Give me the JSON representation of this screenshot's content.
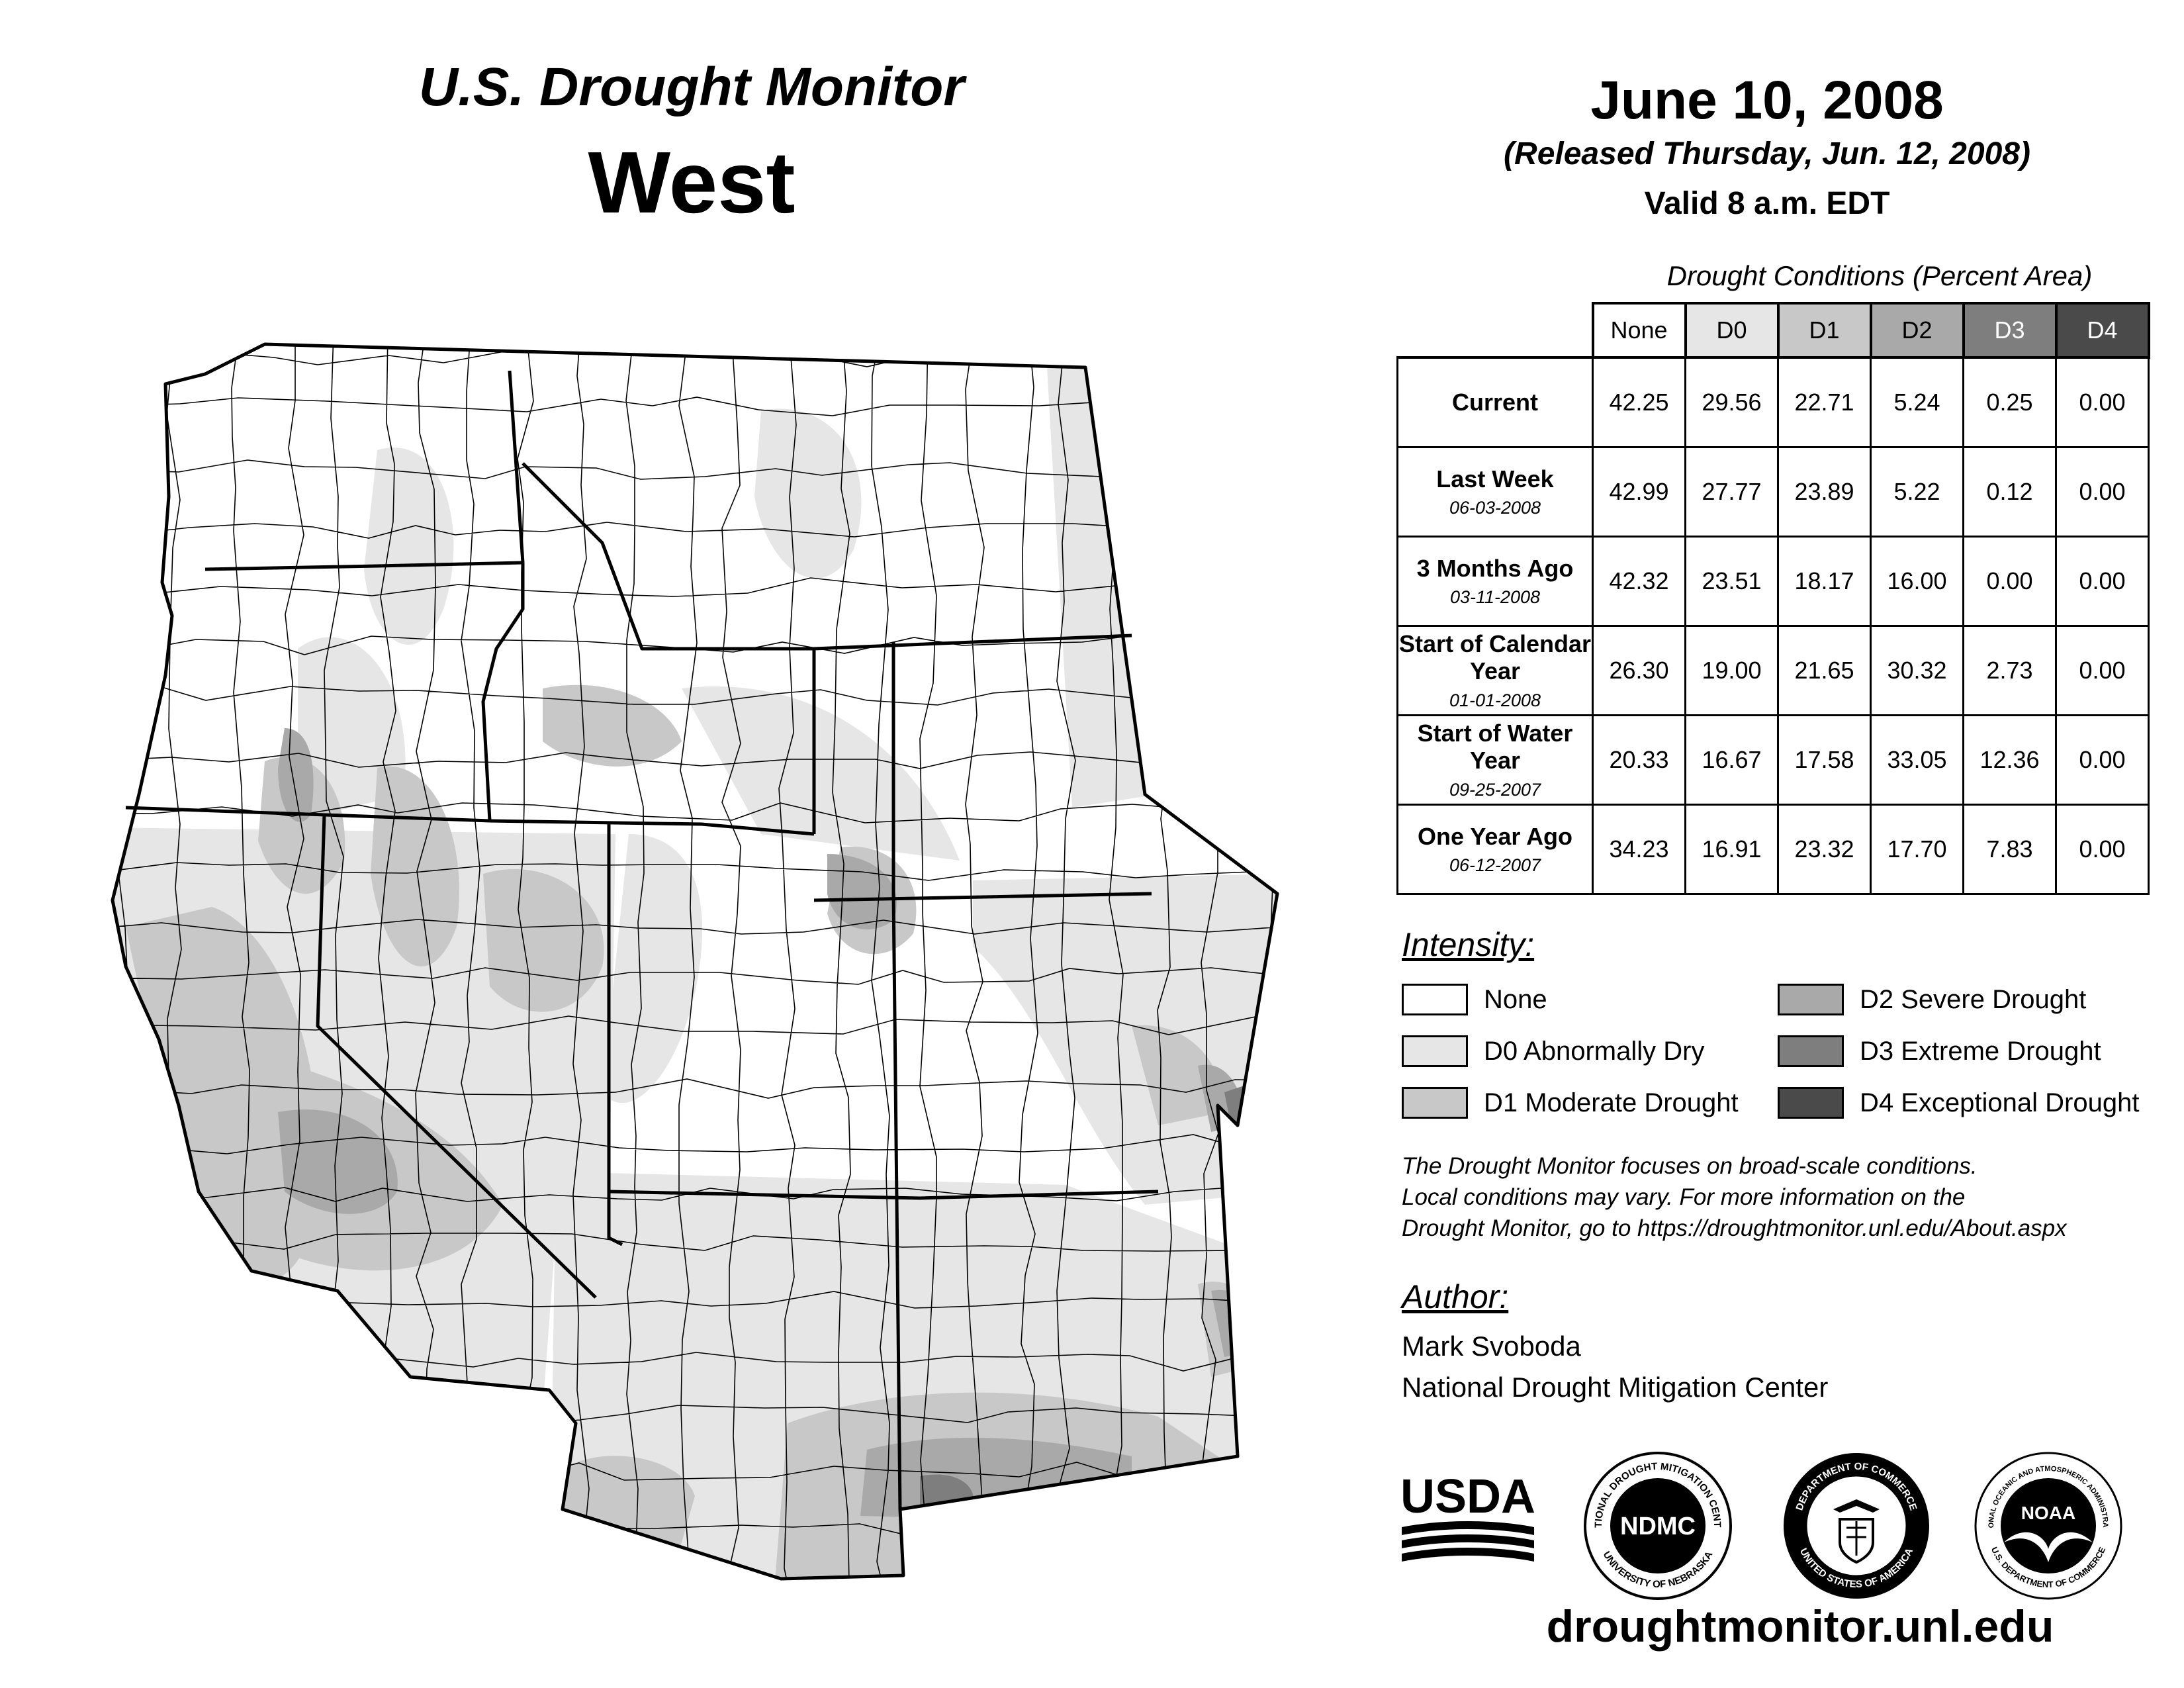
{
  "header": {
    "title_line1": "U.S. Drought Monitor",
    "title_line2": "West",
    "date": "June 10, 2008",
    "released": "(Released Thursday, Jun. 12, 2008)",
    "valid": "Valid 8 a.m. EDT"
  },
  "table": {
    "caption": "Drought Conditions (Percent Area)",
    "columns": [
      "None",
      "D0",
      "D1",
      "D2",
      "D3",
      "D4"
    ],
    "rows": [
      {
        "label": "Current",
        "sub": "",
        "values": [
          "42.25",
          "29.56",
          "22.71",
          "5.24",
          "0.25",
          "0.00"
        ]
      },
      {
        "label": "Last Week",
        "sub": "06-03-2008",
        "values": [
          "42.99",
          "27.77",
          "23.89",
          "5.22",
          "0.12",
          "0.00"
        ]
      },
      {
        "label": "3 Months Ago",
        "sub": "03-11-2008",
        "values": [
          "42.32",
          "23.51",
          "18.17",
          "16.00",
          "0.00",
          "0.00"
        ]
      },
      {
        "label": "Start of Calendar Year",
        "sub": "01-01-2008",
        "values": [
          "26.30",
          "19.00",
          "21.65",
          "30.32",
          "2.73",
          "0.00"
        ]
      },
      {
        "label": "Start of Water Year",
        "sub": "09-25-2007",
        "values": [
          "20.33",
          "16.67",
          "17.58",
          "33.05",
          "12.36",
          "0.00"
        ]
      },
      {
        "label": "One Year Ago",
        "sub": "06-12-2007",
        "values": [
          "34.23",
          "16.91",
          "23.32",
          "17.70",
          "7.83",
          "0.00"
        ]
      }
    ]
  },
  "legend": {
    "title": "Intensity:",
    "items": [
      {
        "label": "None",
        "color": "#ffffff"
      },
      {
        "label": "D0 Abnormally Dry",
        "color": "#e6e6e6"
      },
      {
        "label": "D1 Moderate Drought",
        "color": "#c8c8c8"
      },
      {
        "label": "D2 Severe Drought",
        "color": "#a9a9a9"
      },
      {
        "label": "D3 Extreme Drought",
        "color": "#7e7e7e"
      },
      {
        "label": "D4 Exceptional Drought",
        "color": "#4a4a4a"
      }
    ]
  },
  "note": {
    "line1": "The Drought Monitor focuses on broad-scale conditions.",
    "line2": "Local conditions may vary. For more information on the",
    "line3": "Drought Monitor, go to https://droughtmonitor.unl.edu/About.aspx"
  },
  "author": {
    "title": "Author:",
    "name": "Mark Svoboda",
    "org": "National Drought Mitigation Center"
  },
  "logos": {
    "usda": "USDA",
    "ndmc": "NDMC",
    "ndmc_ring_top": "NATIONAL DROUGHT MITIGATION CENTER",
    "ndmc_ring_bottom": "UNIVERSITY OF NEBRASKA",
    "doc_ring_top": "DEPARTMENT OF COMMERCE",
    "doc_ring_bottom": "UNITED STATES OF AMERICA",
    "noaa": "NOAA",
    "noaa_ring_top": "NATIONAL OCEANIC AND ATMOSPHERIC ADMINISTRATION",
    "noaa_ring_bottom": "U.S. DEPARTMENT OF COMMERCE"
  },
  "footer": {
    "website": "droughtmonitor.unl.edu"
  }
}
